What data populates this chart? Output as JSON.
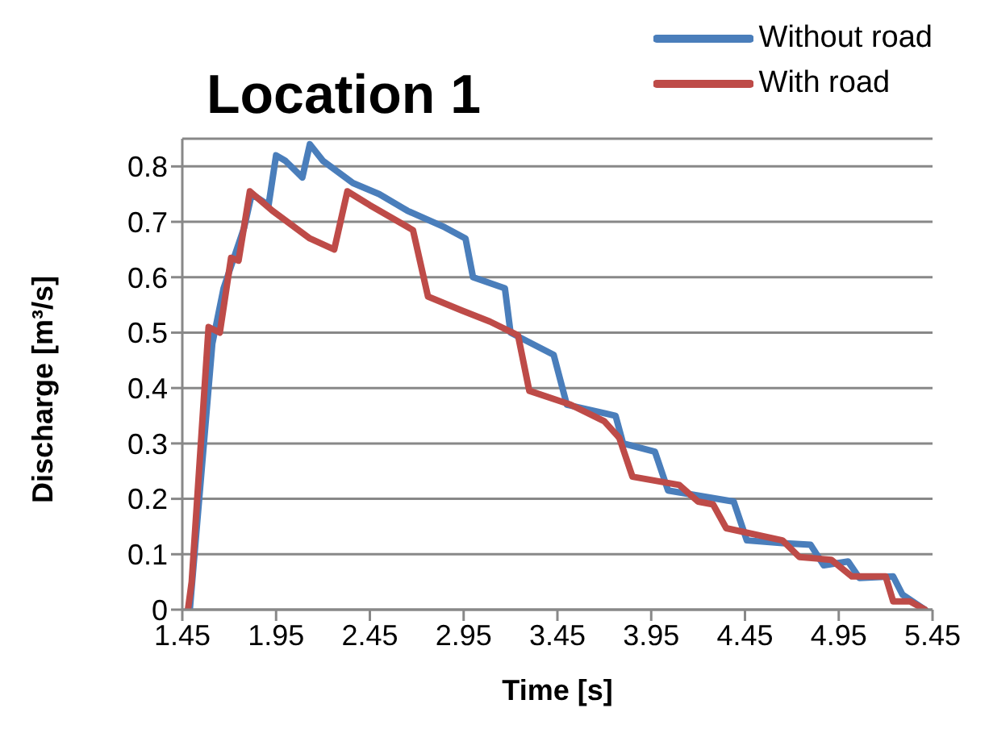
{
  "chart_data": {
    "type": "line",
    "title": "Location 1",
    "xlabel": "Time [s]",
    "ylabel": "Discharge [m³/s]",
    "xlim": [
      1.45,
      5.45
    ],
    "xticks": [
      1.45,
      1.95,
      2.45,
      2.95,
      3.45,
      3.95,
      4.45,
      4.95,
      5.45
    ],
    "ylim": [
      0,
      0.85
    ],
    "yticks": [
      0,
      0.1,
      0.2,
      0.3,
      0.4,
      0.5,
      0.6,
      0.7,
      0.8
    ],
    "grid": "y",
    "legend": "top right",
    "marker": "none",
    "line_style": "solid",
    "series": [
      {
        "name": "Without road",
        "color": "#4a7ebb",
        "x": [
          1.49,
          1.61,
          1.67,
          1.78,
          1.82,
          1.91,
          1.95,
          2.0,
          2.09,
          2.13,
          2.2,
          2.36,
          2.5,
          2.65,
          2.85,
          2.96,
          3.0,
          3.17,
          3.2,
          3.43,
          3.5,
          3.76,
          3.8,
          3.97,
          4.04,
          4.39,
          4.46,
          4.65,
          4.8,
          4.87,
          5.0,
          5.06,
          5.24,
          5.29,
          5.41
        ],
        "values": [
          0,
          0.48,
          0.58,
          0.69,
          0.75,
          0.73,
          0.82,
          0.81,
          0.78,
          0.84,
          0.81,
          0.77,
          0.75,
          0.72,
          0.69,
          0.67,
          0.6,
          0.58,
          0.5,
          0.46,
          0.37,
          0.35,
          0.3,
          0.285,
          0.215,
          0.195,
          0.125,
          0.12,
          0.117,
          0.08,
          0.087,
          0.057,
          0.06,
          0.027,
          0
        ]
      },
      {
        "name": "With road",
        "color": "#be4b48",
        "x": [
          1.48,
          1.5,
          1.59,
          1.65,
          1.71,
          1.75,
          1.81,
          1.93,
          2.13,
          2.26,
          2.33,
          2.45,
          2.68,
          2.76,
          2.94,
          3.09,
          3.24,
          3.3,
          3.52,
          3.7,
          3.78,
          3.85,
          4.1,
          4.2,
          4.28,
          4.35,
          4.65,
          4.74,
          4.91,
          5.02,
          5.2,
          5.24,
          5.33,
          5.41
        ],
        "values": [
          0,
          0.05,
          0.51,
          0.5,
          0.635,
          0.63,
          0.755,
          0.72,
          0.67,
          0.65,
          0.755,
          0.73,
          0.685,
          0.565,
          0.54,
          0.52,
          0.495,
          0.395,
          0.37,
          0.34,
          0.31,
          0.24,
          0.225,
          0.195,
          0.19,
          0.147,
          0.125,
          0.095,
          0.09,
          0.06,
          0.06,
          0.015,
          0.015,
          0
        ]
      }
    ]
  }
}
